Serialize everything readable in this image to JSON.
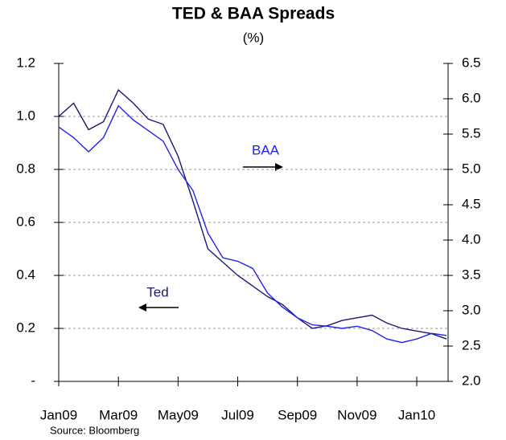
{
  "chart_data": {
    "type": "line",
    "title": "TED & BAA Spreads",
    "subtitle": "(%)",
    "source": "Source: Bloomberg",
    "x": [
      0,
      0.5,
      1,
      1.5,
      2,
      2.5,
      3,
      3.5,
      4,
      4.5,
      5,
      5.5,
      6,
      6.5,
      7,
      7.5,
      8,
      8.5,
      9,
      9.5,
      10,
      10.5,
      11,
      11.5,
      12,
      12.5,
      13
    ],
    "xlim": [
      0,
      13.05
    ],
    "xticks": [
      {
        "value": 0,
        "label": "Jan09"
      },
      {
        "value": 2,
        "label": "Mar09"
      },
      {
        "value": 4,
        "label": "May09"
      },
      {
        "value": 6,
        "label": "Jul09"
      },
      {
        "value": 8,
        "label": "Sep09"
      },
      {
        "value": 10,
        "label": "Nov09"
      },
      {
        "value": 12,
        "label": "Jan10"
      }
    ],
    "ylim": [
      0,
      1.2
    ],
    "yticks": [
      {
        "value": 0,
        "label": "-"
      },
      0.2,
      0.4,
      0.6,
      0.8,
      {
        "value": 1,
        "label": "1.0"
      },
      1.2
    ],
    "y2lim": [
      2,
      6.5
    ],
    "y2ticks": [
      {
        "value": 2,
        "label": "2.0"
      },
      2.5,
      {
        "value": 3,
        "label": "3.0"
      },
      3.5,
      {
        "value": 4,
        "label": "4.0"
      },
      4.5,
      {
        "value": 5,
        "label": "5.0"
      },
      5.5,
      {
        "value": 6,
        "label": "6.0"
      },
      6.5
    ],
    "grid": true,
    "series": [
      {
        "name": "Ted",
        "color": "#1a1a6e",
        "values": [
          1.0,
          1.05,
          0.95,
          0.98,
          1.1,
          1.05,
          0.99,
          0.97,
          0.85,
          0.68,
          0.5,
          0.45,
          0.4,
          0.36,
          0.32,
          0.29,
          0.24,
          0.2,
          0.21,
          0.23,
          0.24,
          0.25,
          0.22,
          0.2,
          0.19,
          0.18,
          0.16
        ]
      },
      {
        "name": "BAA",
        "color": "#2222ee",
        "axis": "y2",
        "values": [
          5.6,
          5.45,
          5.25,
          5.45,
          5.9,
          5.7,
          5.55,
          5.4,
          5.0,
          4.7,
          4.1,
          3.75,
          3.7,
          3.6,
          3.25,
          3.05,
          2.9,
          2.8,
          2.78,
          2.75,
          2.78,
          2.72,
          2.6,
          2.55,
          2.6,
          2.68,
          2.65
        ]
      }
    ]
  }
}
